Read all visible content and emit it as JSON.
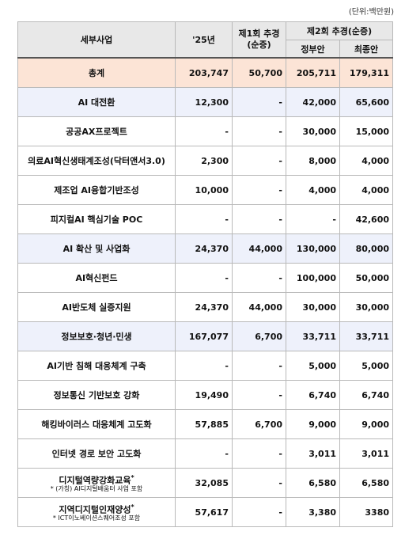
{
  "unit_label": "(단위:백만원)",
  "headers": {
    "item": "세부사업",
    "y25": "'25년",
    "supp1_line1": "제1회 추경",
    "supp1_line2": "(순증)",
    "supp2": "제2회 추경(순증)",
    "gov": "정부안",
    "final": "최종안"
  },
  "rows": [
    {
      "name": "총계",
      "y25": "203,747",
      "supp1": "50,700",
      "gov": "205,711",
      "final": "179,311",
      "type": "total"
    },
    {
      "name": "AI 대전환",
      "y25": "12,300",
      "supp1": "-",
      "gov": "42,000",
      "final": "65,600",
      "type": "cat"
    },
    {
      "name": "공공AX프로젝트",
      "y25": "-",
      "supp1": "-",
      "gov": "30,000",
      "final": "15,000",
      "type": "item"
    },
    {
      "name": "의료AI혁신생태계조성(닥터앤서3.0)",
      "y25": "2,300",
      "supp1": "-",
      "gov": "8,000",
      "final": "4,000",
      "type": "item"
    },
    {
      "name": "제조업 AI융합기반조성",
      "y25": "10,000",
      "supp1": "-",
      "gov": "4,000",
      "final": "4,000",
      "type": "item"
    },
    {
      "name": "피지컬AI 핵심기술 POC",
      "y25": "-",
      "supp1": "-",
      "gov": "-",
      "final": "42,600",
      "type": "item"
    },
    {
      "name": "AI 확산 및 사업화",
      "y25": "24,370",
      "supp1": "44,000",
      "gov": "130,000",
      "final": "80,000",
      "type": "cat"
    },
    {
      "name": "AI혁신펀드",
      "y25": "-",
      "supp1": "-",
      "gov": "100,000",
      "final": "50,000",
      "type": "item"
    },
    {
      "name": "AI반도체 실증지원",
      "y25": "24,370",
      "supp1": "44,000",
      "gov": "30,000",
      "final": "30,000",
      "type": "item"
    },
    {
      "name": "정보보호·청년·민생",
      "y25": "167,077",
      "supp1": "6,700",
      "gov": "33,711",
      "final": "33,711",
      "type": "cat"
    },
    {
      "name": "AI기반 침해 대응체계 구축",
      "y25": "-",
      "supp1": "-",
      "gov": "5,000",
      "final": "5,000",
      "type": "item"
    },
    {
      "name": "정보통신 기반보호 강화",
      "y25": "19,490",
      "supp1": "-",
      "gov": "6,740",
      "final": "6,740",
      "type": "item"
    },
    {
      "name": "해킹바이러스 대응체계 고도화",
      "y25": "57,885",
      "supp1": "6,700",
      "gov": "9,000",
      "final": "9,000",
      "type": "item"
    },
    {
      "name": "인터넷 경로 보안 고도화",
      "y25": "-",
      "supp1": "-",
      "gov": "3,011",
      "final": "3,011",
      "type": "item"
    },
    {
      "name": "디지털역량강화교육",
      "note": "* (가칭) AI디지털배움터 사업 포함",
      "y25": "32,085",
      "supp1": "-",
      "gov": "6,580",
      "final": "6,580",
      "type": "item"
    },
    {
      "name": "지역디지털인재양성",
      "note": "* ICT이노베이션스퀘어조성 포함",
      "y25": "57,617",
      "supp1": "-",
      "gov": "3,380",
      "final": "3380",
      "type": "item"
    }
  ],
  "footnote_mark": "*"
}
